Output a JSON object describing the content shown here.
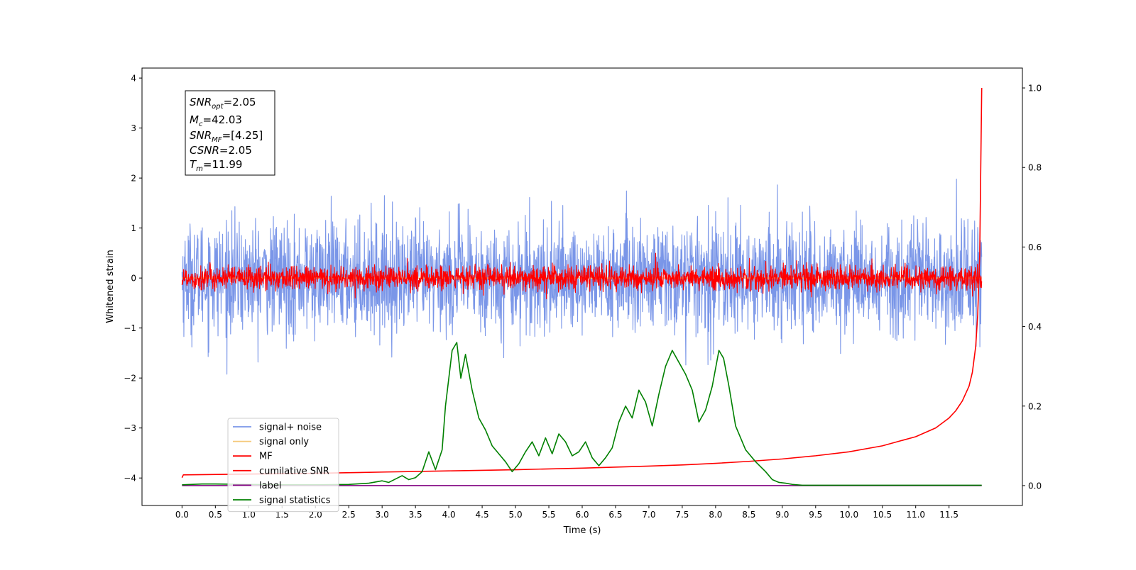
{
  "chart_data": {
    "type": "line",
    "xlabel": "Time (s)",
    "ylabel": "Whitened strain",
    "xlim": [
      -0.6,
      12.6
    ],
    "ylim": [
      -4.55,
      4.2
    ],
    "ylim_right": [
      -0.05,
      1.05
    ],
    "x_ticks": [
      0.0,
      0.5,
      1.0,
      1.5,
      2.0,
      2.5,
      3.0,
      3.5,
      4.0,
      4.5,
      5.0,
      5.5,
      6.0,
      6.5,
      7.0,
      7.5,
      8.0,
      8.5,
      9.0,
      9.5,
      10.0,
      10.5,
      11.0,
      11.5
    ],
    "x_tick_labels": [
      "0.0",
      "0.5",
      "1.0",
      "1.5",
      "2.0",
      "2.5",
      "3.0",
      "3.5",
      "4.0",
      "4.5",
      "5.0",
      "5.5",
      "6.0",
      "6.5",
      "7.0",
      "7.5",
      "8.0",
      "8.5",
      "9.0",
      "9.5",
      "10.0",
      "10.5",
      "11.0",
      "11.5"
    ],
    "y_ticks": [
      4,
      3,
      2,
      1,
      0,
      -1,
      -2,
      -3,
      -4
    ],
    "y_tick_labels": [
      "4",
      "3",
      "2",
      "1",
      "0",
      "−1",
      "−2",
      "−3",
      "−4"
    ],
    "y_right_ticks": [
      1.0,
      0.8,
      0.6,
      0.4,
      0.2,
      0.0
    ],
    "y_right_tick_labels": [
      "1.0",
      "0.8",
      "0.6",
      "0.4",
      "0.2",
      "0.0"
    ],
    "grid": false,
    "legend_position": "lower-left",
    "series": [
      {
        "name": "signal+ noise",
        "axis": "left",
        "color": "#7a96e8",
        "style": "noise",
        "x_range": [
          0.0,
          11.99
        ],
        "amplitude": 1.0,
        "center": 0.0
      },
      {
        "name": "signal only",
        "axis": "left",
        "color": "#f5c878",
        "x": [
          0.0,
          11.99
        ],
        "y": [
          0.0,
          0.0
        ]
      },
      {
        "name": "MF",
        "axis": "left",
        "color": "#ff0000",
        "style": "noise",
        "x_range": [
          0.0,
          11.99
        ],
        "amplitude": 0.22,
        "center": 0.0
      },
      {
        "name": "cumilative SNR",
        "axis": "right",
        "color": "#ff0000",
        "x": [
          0.0,
          0.02,
          1.0,
          2.0,
          3.0,
          4.0,
          5.0,
          6.0,
          7.0,
          7.5,
          8.0,
          8.5,
          9.0,
          9.5,
          10.0,
          10.5,
          11.0,
          11.3,
          11.5,
          11.6,
          11.7,
          11.8,
          11.85,
          11.9,
          11.93,
          11.96,
          11.99
        ],
        "y": [
          0.02,
          0.027,
          0.029,
          0.031,
          0.034,
          0.037,
          0.04,
          0.044,
          0.049,
          0.052,
          0.056,
          0.061,
          0.067,
          0.075,
          0.085,
          0.1,
          0.123,
          0.145,
          0.17,
          0.188,
          0.213,
          0.25,
          0.285,
          0.35,
          0.43,
          0.58,
          1.0
        ]
      },
      {
        "name": "label",
        "axis": "right",
        "color": "#800080",
        "x": [
          0.0,
          11.99
        ],
        "y": [
          0.0,
          0.0
        ]
      },
      {
        "name": "signal statistics",
        "axis": "right",
        "color": "#008000",
        "x": [
          0.0,
          0.3,
          0.5,
          1.0,
          1.5,
          2.0,
          2.5,
          2.8,
          3.0,
          3.1,
          3.3,
          3.4,
          3.5,
          3.6,
          3.7,
          3.8,
          3.9,
          3.95,
          4.05,
          4.12,
          4.18,
          4.25,
          4.35,
          4.45,
          4.55,
          4.65,
          4.75,
          4.85,
          4.95,
          5.05,
          5.15,
          5.25,
          5.35,
          5.45,
          5.55,
          5.65,
          5.75,
          5.85,
          5.95,
          6.05,
          6.15,
          6.25,
          6.35,
          6.45,
          6.55,
          6.65,
          6.75,
          6.85,
          6.95,
          7.05,
          7.15,
          7.25,
          7.35,
          7.45,
          7.55,
          7.65,
          7.75,
          7.85,
          7.95,
          8.05,
          8.12,
          8.2,
          8.3,
          8.45,
          8.6,
          8.75,
          8.85,
          8.95,
          9.05,
          9.15,
          9.3,
          9.5,
          10.0,
          11.0,
          11.99
        ],
        "y": [
          0.002,
          0.004,
          0.004,
          0.003,
          0.002,
          0.002,
          0.003,
          0.006,
          0.012,
          0.008,
          0.025,
          0.015,
          0.02,
          0.035,
          0.085,
          0.04,
          0.09,
          0.2,
          0.34,
          0.36,
          0.27,
          0.33,
          0.24,
          0.17,
          0.14,
          0.1,
          0.08,
          0.06,
          0.035,
          0.055,
          0.085,
          0.11,
          0.075,
          0.12,
          0.08,
          0.13,
          0.11,
          0.075,
          0.085,
          0.11,
          0.07,
          0.05,
          0.07,
          0.095,
          0.16,
          0.2,
          0.17,
          0.24,
          0.21,
          0.15,
          0.23,
          0.3,
          0.34,
          0.31,
          0.28,
          0.24,
          0.16,
          0.19,
          0.25,
          0.34,
          0.32,
          0.25,
          0.15,
          0.09,
          0.06,
          0.035,
          0.015,
          0.008,
          0.006,
          0.003,
          0.001,
          0.001,
          0.001,
          0.001,
          0.001
        ]
      }
    ]
  },
  "info_box": {
    "snr_opt_label": "SNR",
    "snr_opt_sub": "opt",
    "snr_opt_value": "=2.05",
    "mc_label": "M",
    "mc_sub": "c",
    "mc_value": "=42.03",
    "snr_mf_label": "SNR",
    "snr_mf_sub": "MF",
    "snr_mf_value": "=[4.25]",
    "csnr_label": "CSNR",
    "csnr_value": "=2.05",
    "tm_label": "T",
    "tm_sub": "m",
    "tm_value": "=11.99"
  }
}
